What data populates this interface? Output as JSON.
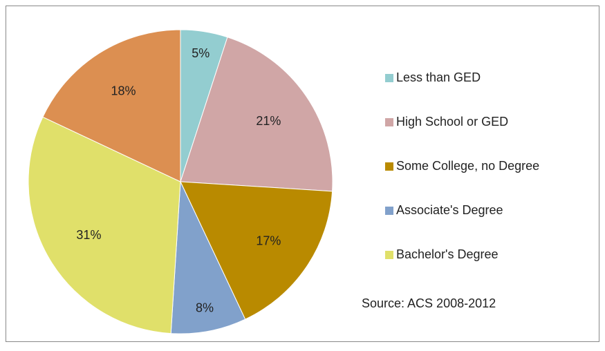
{
  "chart_data": {
    "type": "pie",
    "categories": [
      "Less than GED",
      "High School or GED",
      "Some College, no Degree",
      "Associate's Degree",
      "Bachelor's Degree",
      null
    ],
    "values": [
      5,
      21,
      17,
      8,
      31,
      18
    ],
    "value_labels": [
      "5%",
      "21%",
      "17%",
      "8%",
      "31%",
      "18%"
    ],
    "colors": [
      "#93cdd0",
      "#d0a6a6",
      "#b98a00",
      "#81a1cb",
      "#e0e06a",
      "#dc8f51"
    ],
    "legend": "right",
    "annotation": "Source: ACS 2008-2012"
  }
}
